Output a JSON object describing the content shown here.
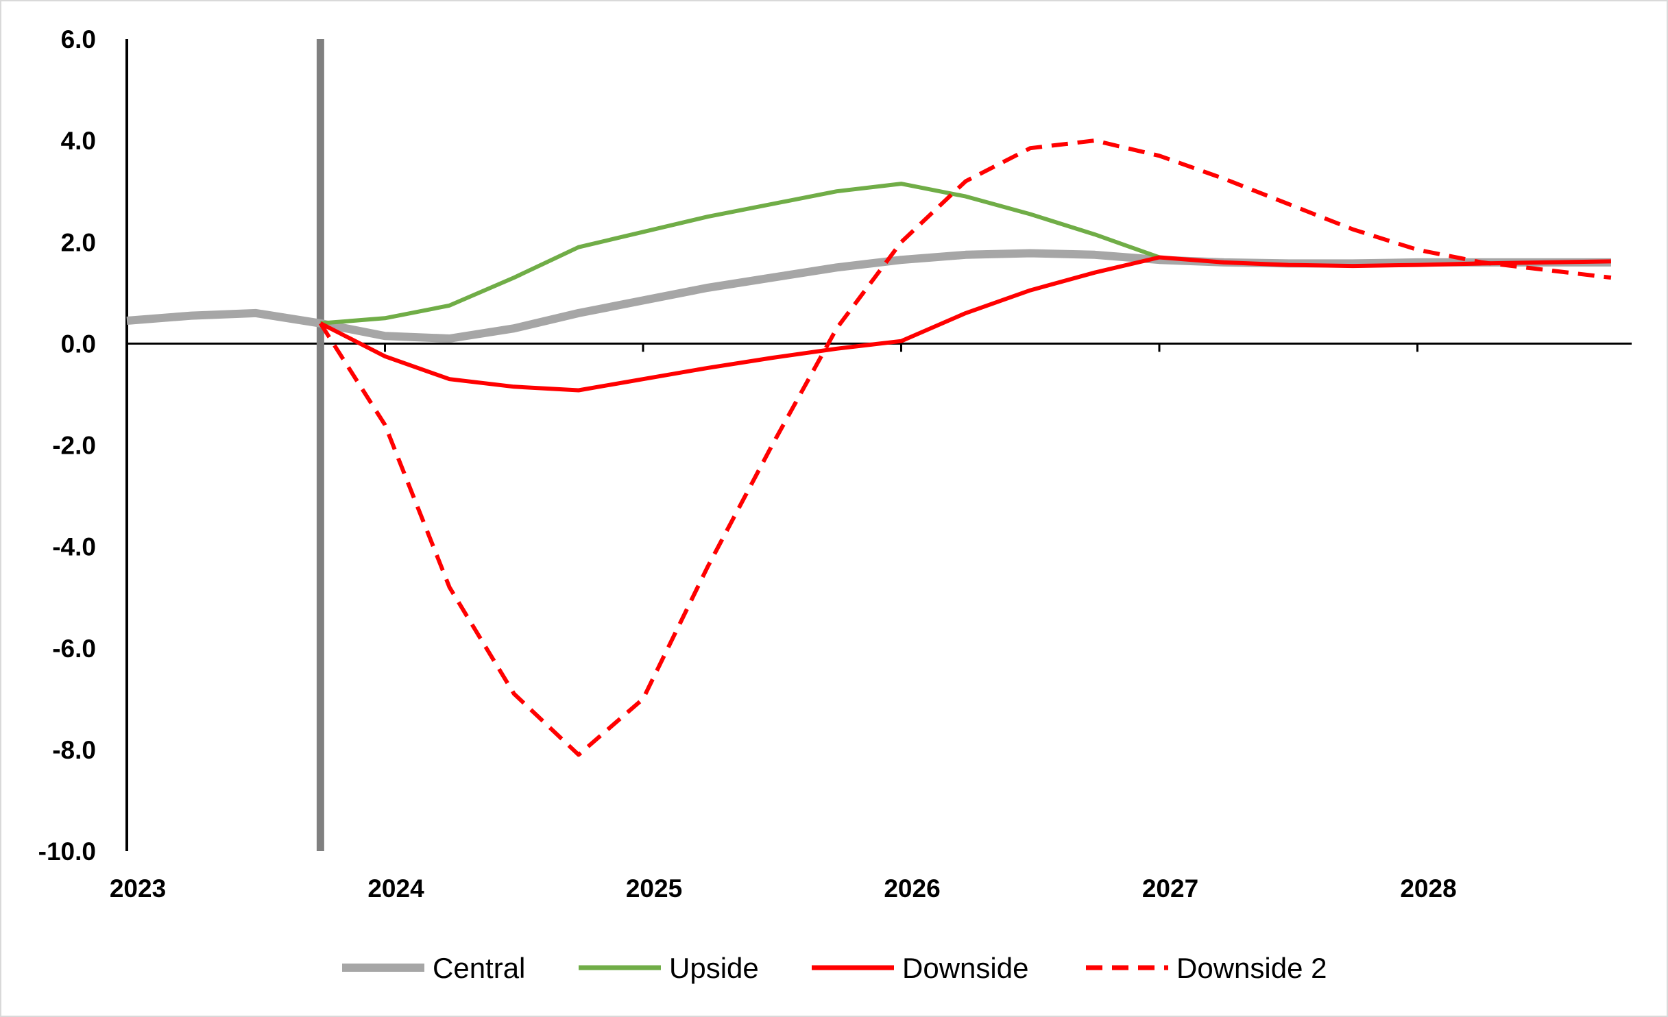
{
  "chart_data": {
    "type": "line",
    "title": "",
    "xlabel": "",
    "ylabel": "",
    "xlim": [
      2023.0,
      2028.83
    ],
    "ylim": [
      -10.0,
      6.0
    ],
    "y_ticks": [
      6.0,
      4.0,
      2.0,
      0.0,
      -2.0,
      -4.0,
      -6.0,
      -8.0,
      -10.0
    ],
    "y_tick_labels": [
      "6.0",
      "4.0",
      "2.0",
      "0.0",
      "-2.0",
      "-4.0",
      "-6.0",
      "-8.0",
      "-10.0"
    ],
    "x_ticks": [
      2023,
      2024,
      2025,
      2026,
      2027,
      2028
    ],
    "x_tick_labels": [
      "2023",
      "2024",
      "2025",
      "2026",
      "2027",
      "2028"
    ],
    "grid": false,
    "legend_position": "bottom",
    "forecast_marker_x": 2023.75,
    "series": [
      {
        "name": "Central",
        "color": "#a6a6a6",
        "style": "solid",
        "x": [
          2023.0,
          2023.25,
          2023.5,
          2023.75,
          2024.0,
          2024.25,
          2024.5,
          2024.75,
          2025.0,
          2025.25,
          2025.5,
          2025.75,
          2026.0,
          2026.25,
          2026.5,
          2026.75,
          2027.0,
          2027.25,
          2027.5,
          2027.75,
          2028.0,
          2028.25,
          2028.5,
          2028.75
        ],
        "values": [
          0.45,
          0.55,
          0.6,
          0.4,
          0.15,
          0.1,
          0.3,
          0.6,
          0.85,
          1.1,
          1.3,
          1.5,
          1.65,
          1.75,
          1.78,
          1.75,
          1.65,
          1.6,
          1.58,
          1.58,
          1.6,
          1.6,
          1.6,
          1.6
        ]
      },
      {
        "name": "Upside",
        "color": "#70ad47",
        "style": "solid",
        "x": [
          2023.75,
          2024.0,
          2024.25,
          2024.5,
          2024.75,
          2025.0,
          2025.25,
          2025.5,
          2025.75,
          2026.0,
          2026.25,
          2026.5,
          2026.75,
          2027.0
        ],
        "values": [
          0.4,
          0.5,
          0.75,
          1.3,
          1.9,
          2.2,
          2.5,
          2.75,
          3.0,
          3.15,
          2.9,
          2.55,
          2.15,
          1.7
        ]
      },
      {
        "name": "Downside",
        "color": "#ff0000",
        "style": "solid",
        "x": [
          2023.75,
          2024.0,
          2024.25,
          2024.5,
          2024.75,
          2025.0,
          2025.25,
          2025.5,
          2025.75,
          2026.0,
          2026.25,
          2026.5,
          2026.75,
          2027.0,
          2027.25,
          2027.5,
          2027.75,
          2028.0,
          2028.25,
          2028.5,
          2028.75
        ],
        "values": [
          0.4,
          -0.25,
          -0.7,
          -0.85,
          -0.92,
          -0.7,
          -0.48,
          -0.28,
          -0.1,
          0.05,
          0.6,
          1.05,
          1.4,
          1.7,
          1.6,
          1.55,
          1.53,
          1.55,
          1.58,
          1.6,
          1.62
        ]
      },
      {
        "name": "Downside 2",
        "color": "#ff0000",
        "style": "dashed",
        "x": [
          2023.75,
          2024.0,
          2024.25,
          2024.5,
          2024.75,
          2025.0,
          2025.25,
          2025.5,
          2025.75,
          2026.0,
          2026.25,
          2026.5,
          2026.75,
          2027.0,
          2027.25,
          2027.5,
          2027.75,
          2028.0,
          2028.25,
          2028.5,
          2028.75
        ],
        "values": [
          0.4,
          -1.6,
          -4.8,
          -6.9,
          -8.1,
          -7.0,
          -4.4,
          -2.0,
          0.3,
          2.0,
          3.2,
          3.85,
          4.0,
          3.7,
          3.25,
          2.75,
          2.25,
          1.85,
          1.6,
          1.45,
          1.3
        ]
      }
    ]
  }
}
